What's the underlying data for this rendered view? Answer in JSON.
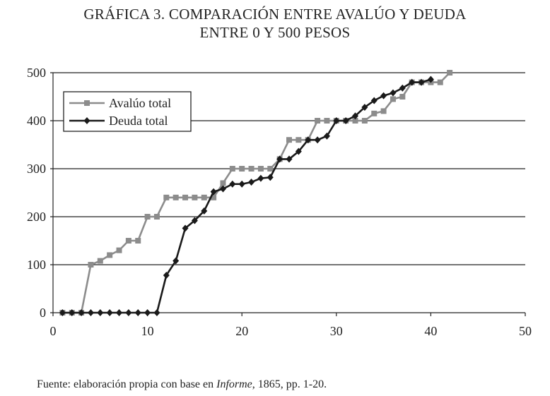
{
  "chart_data": {
    "type": "line",
    "title_line1": "GRÁFICA 3. COMPARACIÓN ENTRE AVALÚO Y DEUDA",
    "title_line2": "ENTRE 0 Y 500 PESOS",
    "xlim": [
      0,
      50
    ],
    "ylim": [
      0,
      500
    ],
    "xticks": [
      0,
      10,
      20,
      30,
      40,
      50
    ],
    "yticks": [
      0,
      100,
      200,
      300,
      400,
      500
    ],
    "grid": "horizontal",
    "legend_position": "top-left",
    "series": [
      {
        "name": "Avalúo total",
        "color": "#8c8c8c",
        "marker": "square",
        "x": [
          1,
          2,
          3,
          4,
          5,
          6,
          7,
          8,
          9,
          10,
          11,
          12,
          13,
          14,
          15,
          16,
          17,
          18,
          19,
          20,
          21,
          22,
          23,
          24,
          25,
          26,
          27,
          28,
          29,
          30,
          31,
          32,
          33,
          34,
          35,
          36,
          37,
          38,
          39,
          40,
          41,
          42
        ],
        "y": [
          0,
          0,
          0,
          100,
          108,
          120,
          130,
          150,
          150,
          200,
          200,
          240,
          240,
          240,
          240,
          240,
          240,
          270,
          300,
          300,
          300,
          300,
          300,
          320,
          360,
          360,
          360,
          400,
          400,
          400,
          400,
          400,
          400,
          415,
          420,
          445,
          450,
          480,
          480,
          480,
          480,
          500
        ]
      },
      {
        "name": "Deuda total",
        "color": "#1a1a1a",
        "marker": "diamond",
        "x": [
          1,
          2,
          3,
          4,
          5,
          6,
          7,
          8,
          9,
          10,
          11,
          12,
          13,
          14,
          15,
          16,
          17,
          18,
          19,
          20,
          21,
          22,
          23,
          24,
          25,
          26,
          27,
          28,
          29,
          30,
          31,
          32,
          33,
          34,
          35,
          36,
          37,
          38,
          39,
          40
        ],
        "y": [
          0,
          0,
          0,
          0,
          0,
          0,
          0,
          0,
          0,
          0,
          0,
          78,
          108,
          176,
          192,
          212,
          252,
          258,
          268,
          268,
          272,
          280,
          282,
          320,
          320,
          336,
          360,
          360,
          368,
          400,
          400,
          410,
          428,
          442,
          452,
          458,
          468,
          480,
          480,
          486
        ]
      }
    ]
  },
  "source": {
    "prefix": "Fuente: elaboración propia con base en ",
    "italic": "Informe",
    "suffix": ", 1865, pp. 1-20."
  }
}
